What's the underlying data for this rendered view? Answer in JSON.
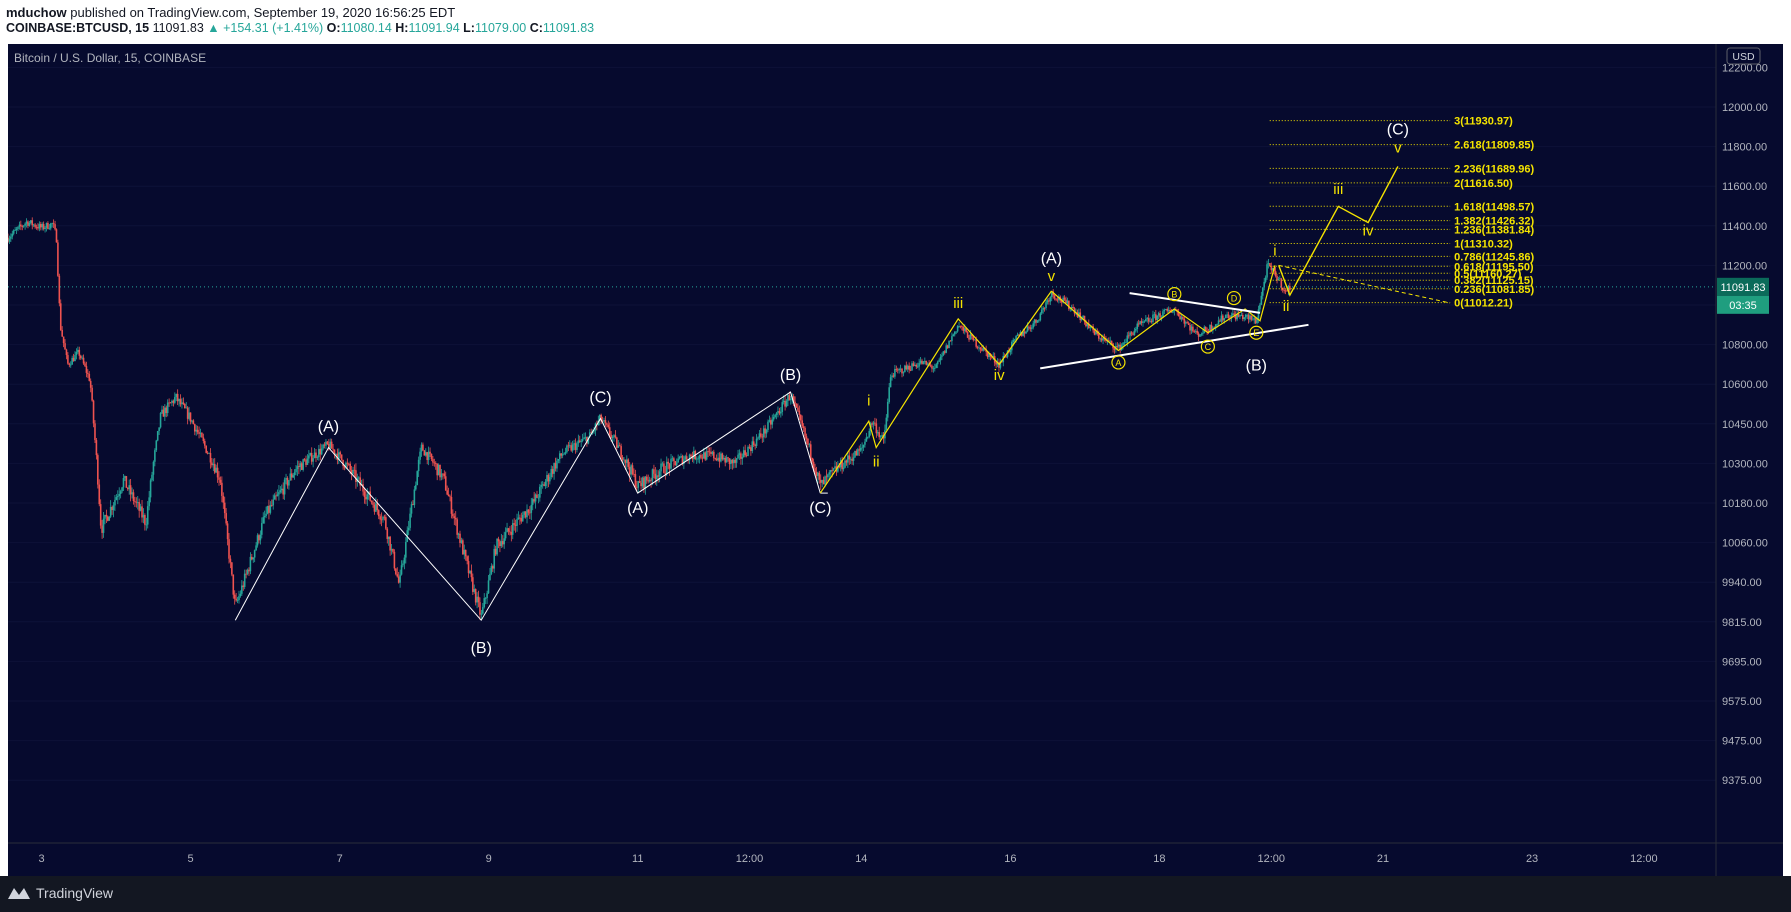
{
  "header": {
    "author": "mduchow",
    "published_text": "published on TradingView.com, September 19, 2020 16:56:25 EDT",
    "symbol_label": "COINBASE:BTCUSD, 15",
    "last": "11091.83",
    "change": "▲ +154.31 (+1.41%)",
    "o_label": "O:",
    "o_value": "11080.14",
    "h_label": "H:",
    "h_value": "11091.94",
    "l_label": "L:",
    "l_value": "11079.00",
    "c_label": "C:",
    "c_value": "11091.83"
  },
  "chart_title": "Bitcoin / U.S. Dollar, 15, COINBASE",
  "currency_badge": "USD",
  "current_price_label": "11091.83",
  "countdown_label": "03:35",
  "footer": {
    "brand": "TradingView"
  },
  "colors": {
    "background": "#060a2e",
    "up": "#26a69a",
    "down": "#ef5350",
    "wave_yellow": "#f5e400",
    "wave_white": "#ffffff",
    "fib_yellow": "#f5e400",
    "price_badge": "#0b6b5a",
    "countdown_badge": "#1f9e7f"
  },
  "chart_data": {
    "type": "candlestick",
    "title": "Bitcoin / U.S. Dollar, 15, COINBASE",
    "x_tick_labels": [
      "3",
      "5",
      "7",
      "9",
      "11",
      "12:00",
      "14",
      "16",
      "18",
      "12:00",
      "21",
      "23",
      "12:00"
    ],
    "x_ticks": [
      3.0,
      5.0,
      7.0,
      9.0,
      11.0,
      12.5,
      14.0,
      16.0,
      18.0,
      19.5,
      21.0,
      23.0,
      24.5
    ],
    "xlim": [
      2.55,
      26.3
    ],
    "ylim": [
      9340,
      12300
    ],
    "y_tick_labels": [
      "12200.00",
      "12000.00",
      "11800.00",
      "11600.00",
      "11400.00",
      "11200.00",
      "11000.00",
      "10800.00",
      "10600.00",
      "10450.00",
      "10300.00",
      "10180.00",
      "10060.00",
      "9940.00",
      "9815.00",
      "9695.00",
      "9575.00",
      "9475.00",
      "9375.00"
    ],
    "y_ticks": [
      12200,
      12000,
      11800,
      11600,
      11400,
      11200,
      11000,
      10800,
      10600,
      10450,
      10300,
      10180,
      10060,
      9940,
      9815,
      9695,
      9575,
      9475,
      9375
    ],
    "last_price": 11091.83,
    "price_path": [
      [
        2.55,
        11340
      ],
      [
        2.8,
        11420
      ],
      [
        3.0,
        11390
      ],
      [
        3.15,
        11410
      ],
      [
        3.2,
        11340
      ],
      [
        3.25,
        10900
      ],
      [
        3.35,
        10700
      ],
      [
        3.5,
        10760
      ],
      [
        3.65,
        10620
      ],
      [
        3.8,
        10100
      ],
      [
        4.1,
        10250
      ],
      [
        4.4,
        10120
      ],
      [
        4.6,
        10480
      ],
      [
        4.8,
        10550
      ],
      [
        5.0,
        10470
      ],
      [
        5.4,
        10250
      ],
      [
        5.6,
        9860
      ],
      [
        6.0,
        10140
      ],
      [
        6.4,
        10280
      ],
      [
        6.85,
        10370
      ],
      [
        7.2,
        10260
      ],
      [
        7.6,
        10130
      ],
      [
        7.8,
        9930
      ],
      [
        8.1,
        10360
      ],
      [
        8.4,
        10250
      ],
      [
        8.9,
        9830
      ],
      [
        9.1,
        10050
      ],
      [
        9.6,
        10180
      ],
      [
        10.0,
        10340
      ],
      [
        10.35,
        10400
      ],
      [
        10.5,
        10470
      ],
      [
        10.7,
        10380
      ],
      [
        11.0,
        10230
      ],
      [
        11.3,
        10280
      ],
      [
        11.7,
        10330
      ],
      [
        12.0,
        10330
      ],
      [
        12.3,
        10300
      ],
      [
        12.7,
        10420
      ],
      [
        13.05,
        10560
      ],
      [
        13.2,
        10440
      ],
      [
        13.45,
        10230
      ],
      [
        13.7,
        10290
      ],
      [
        14.0,
        10350
      ],
      [
        14.15,
        10460
      ],
      [
        14.3,
        10380
      ],
      [
        14.4,
        10650
      ],
      [
        14.8,
        10710
      ],
      [
        15.0,
        10680
      ],
      [
        15.3,
        10900
      ],
      [
        15.5,
        10820
      ],
      [
        15.85,
        10700
      ],
      [
        16.1,
        10840
      ],
      [
        16.35,
        10920
      ],
      [
        16.55,
        11060
      ],
      [
        16.85,
        10980
      ],
      [
        17.15,
        10850
      ],
      [
        17.45,
        10780
      ],
      [
        17.7,
        10890
      ],
      [
        18.0,
        10950
      ],
      [
        18.2,
        10980
      ],
      [
        18.5,
        10850
      ],
      [
        18.7,
        10890
      ],
      [
        18.9,
        10950
      ],
      [
        19.15,
        10940
      ],
      [
        19.3,
        10920
      ],
      [
        19.45,
        11200
      ],
      [
        19.6,
        11130
      ],
      [
        19.7,
        11060
      ],
      [
        19.75,
        11092
      ]
    ],
    "wave_paths_white": [
      [
        [
          5.6,
          9820
        ],
        [
          6.85,
          10360
        ],
        [
          8.9,
          9820
        ],
        [
          10.5,
          10470
        ],
        [
          11.0,
          10210
        ],
        [
          13.05,
          10570
        ],
        [
          13.45,
          10210
        ]
      ],
      [
        [
          13.45,
          10210
        ],
        [
          13.55,
          10210
        ]
      ]
    ],
    "wave_path_yellow": [
      [
        13.45,
        10210
      ],
      [
        14.1,
        10460
      ],
      [
        14.2,
        10360
      ],
      [
        15.3,
        10930
      ],
      [
        15.85,
        10700
      ],
      [
        16.55,
        11070
      ]
    ],
    "wave_projection_yellow": [
      [
        19.6,
        11200
      ],
      [
        19.75,
        11050
      ],
      [
        20.4,
        11498
      ],
      [
        20.8,
        11416
      ],
      [
        21.2,
        11700
      ]
    ],
    "abcde_path_yellow": [
      [
        16.55,
        11070
      ],
      [
        17.45,
        10770
      ],
      [
        18.2,
        10980
      ],
      [
        18.65,
        10860
      ],
      [
        19.15,
        10980
      ],
      [
        19.35,
        10920
      ],
      [
        19.55,
        11200
      ]
    ],
    "trendlines_white": [
      [
        [
          16.4,
          10680
        ],
        [
          20.0,
          10900
        ]
      ],
      [
        [
          17.6,
          11060
        ],
        [
          19.35,
          10960
        ]
      ]
    ],
    "projection_dashed": [
      [
        19.6,
        11200
      ],
      [
        21.9,
        11010
      ]
    ],
    "fib_levels": [
      {
        "ratio": "3",
        "price": 11930.97,
        "label": "3(11930.97)"
      },
      {
        "ratio": "2.618",
        "price": 11809.85,
        "label": "2.618(11809.85)"
      },
      {
        "ratio": "2.236",
        "price": 11689.96,
        "label": "2.236(11689.96)"
      },
      {
        "ratio": "2",
        "price": 11616.5,
        "label": "2(11616.50)"
      },
      {
        "ratio": "1.618",
        "price": 11498.57,
        "label": "1.618(11498.57)"
      },
      {
        "ratio": "1.382",
        "price": 11426.32,
        "label": "1.382(11426.32)"
      },
      {
        "ratio": "1.236",
        "price": 11381.84,
        "label": "1.236(11381.84)"
      },
      {
        "ratio": "1",
        "price": 11310.32,
        "label": "1(11310.32)"
      },
      {
        "ratio": "0.786",
        "price": 11245.86,
        "label": "0.786(11245.86)"
      },
      {
        "ratio": "0.618",
        "price": 11195.5,
        "label": "0.618(11195.50)"
      },
      {
        "ratio": "0.5",
        "price": 11160.27,
        "label": "0.5(11160.27)"
      },
      {
        "ratio": "0.382",
        "price": 11125.15,
        "label": "0.382(11125.15)"
      },
      {
        "ratio": "0.236",
        "price": 11081.85,
        "label": "0.236(11081.85)"
      },
      {
        "ratio": "0",
        "price": 11012.21,
        "label": "0(11012.21)"
      }
    ],
    "wave_labels": [
      {
        "text": "(A)",
        "x": 6.85,
        "y": 10420,
        "color": "white"
      },
      {
        "text": "(B)",
        "x": 8.9,
        "y": 9720,
        "color": "white"
      },
      {
        "text": "(C)",
        "x": 10.5,
        "y": 10530,
        "color": "white"
      },
      {
        "text": "(A)",
        "x": 11.0,
        "y": 10150,
        "color": "white"
      },
      {
        "text": "(B)",
        "x": 13.05,
        "y": 10620,
        "color": "white"
      },
      {
        "text": "(C)",
        "x": 13.45,
        "y": 10150,
        "color": "white"
      },
      {
        "text": "i",
        "x": 14.1,
        "y": 10520,
        "color": "yellow"
      },
      {
        "text": "ii",
        "x": 14.2,
        "y": 10290,
        "color": "yellow"
      },
      {
        "text": "iii",
        "x": 15.3,
        "y": 10985,
        "color": "yellow"
      },
      {
        "text": "iv",
        "x": 15.85,
        "y": 10620,
        "color": "yellow"
      },
      {
        "text": "v",
        "x": 16.55,
        "y": 11120,
        "color": "yellow"
      },
      {
        "text": "(A)",
        "x": 16.55,
        "y": 11210,
        "color": "white"
      },
      {
        "text": "(B)",
        "x": 19.3,
        "y": 10670,
        "color": "white"
      },
      {
        "text": "i",
        "x": 19.55,
        "y": 11250,
        "color": "yellow"
      },
      {
        "text": "ii",
        "x": 19.7,
        "y": 10970,
        "color": "yellow"
      },
      {
        "text": "iii",
        "x": 20.4,
        "y": 11560,
        "color": "yellow"
      },
      {
        "text": "iv",
        "x": 20.8,
        "y": 11350,
        "color": "yellow"
      },
      {
        "text": "v",
        "x": 21.2,
        "y": 11770,
        "color": "yellow"
      },
      {
        "text": "(C)",
        "x": 21.2,
        "y": 11860,
        "color": "white"
      }
    ],
    "circle_labels": [
      {
        "text": "A",
        "x": 17.45,
        "y": 10710
      },
      {
        "text": "B",
        "x": 18.2,
        "y": 11055
      },
      {
        "text": "C",
        "x": 18.65,
        "y": 10790
      },
      {
        "text": "D",
        "x": 19.0,
        "y": 11035
      },
      {
        "text": "E",
        "x": 19.3,
        "y": 10860
      }
    ]
  }
}
